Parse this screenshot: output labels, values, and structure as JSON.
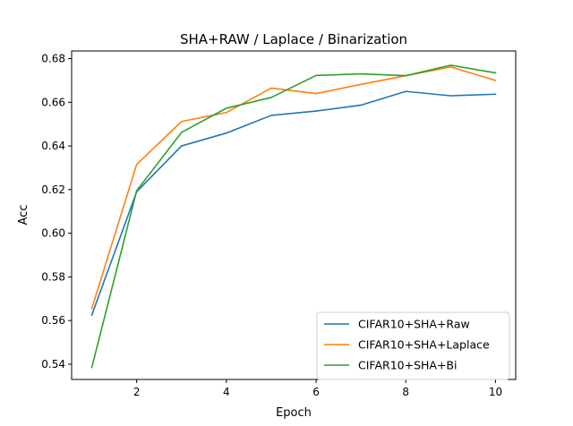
{
  "chart_data": {
    "type": "line",
    "title": "SHA+RAW / Laplace / Binarization",
    "xlabel": "Epoch",
    "ylabel": "Acc",
    "x": [
      1,
      2,
      3,
      4,
      5,
      6,
      7,
      8,
      9,
      10
    ],
    "xlim": [
      0.55,
      10.45
    ],
    "ylim": [
      0.533,
      0.6835
    ],
    "xticks": [
      2,
      4,
      6,
      8,
      10
    ],
    "yticks": [
      0.54,
      0.56,
      0.58,
      0.6,
      0.62,
      0.64,
      0.66,
      0.68
    ],
    "xtick_labels": [
      "2",
      "4",
      "6",
      "8",
      "10"
    ],
    "ytick_labels": [
      "0.54",
      "0.56",
      "0.58",
      "0.60",
      "0.62",
      "0.64",
      "0.66",
      "0.68"
    ],
    "grid": false,
    "legend_position": "lower-right",
    "series": [
      {
        "name": "CIFAR10+SHA+Raw",
        "color": "#1f77b4",
        "values": [
          0.5625,
          0.619,
          0.64,
          0.6459,
          0.654,
          0.656,
          0.6587,
          0.665,
          0.663,
          0.6637
        ]
      },
      {
        "name": "CIFAR10+SHA+Laplace",
        "color": "#ff7f0e",
        "values": [
          0.5655,
          0.6315,
          0.6512,
          0.6553,
          0.6665,
          0.664,
          0.6682,
          0.6722,
          0.6762,
          0.67
        ]
      },
      {
        "name": "CIFAR10+SHA+Bi",
        "color": "#2ca02c",
        "values": [
          0.5385,
          0.6195,
          0.6462,
          0.6573,
          0.6622,
          0.6723,
          0.673,
          0.6722,
          0.677,
          0.6735
        ]
      }
    ]
  }
}
